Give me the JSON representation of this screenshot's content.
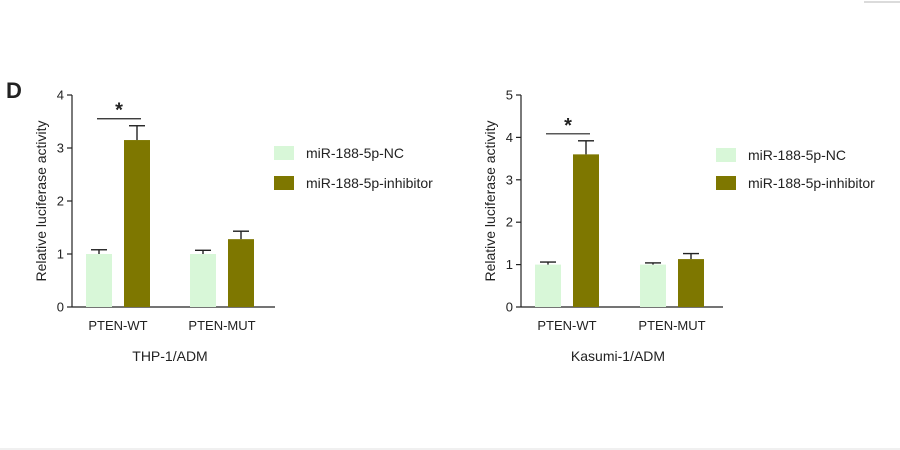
{
  "panel_label": "D",
  "colors": {
    "nc": "#d8f7d8",
    "inhibitor": "#7e7700"
  },
  "chart_data": [
    {
      "type": "bar",
      "categories": [
        "PTEN-WT",
        "PTEN-MUT"
      ],
      "series": [
        {
          "name": "miR-188-5p-NC",
          "values": [
            1.0,
            1.0
          ],
          "errors": [
            0.08,
            0.07
          ]
        },
        {
          "name": "miR-188-5p-inhibitor",
          "values": [
            3.15,
            1.28
          ],
          "errors": [
            0.27,
            0.15
          ]
        }
      ],
      "xlabel": "THP-1/ADM",
      "ylabel": "Relative luciferase activity",
      "ylim": [
        0,
        4
      ],
      "yticks": [
        0,
        1,
        2,
        3,
        4
      ],
      "grid": false,
      "legend": "right",
      "significance": [
        {
          "category": "PTEN-WT",
          "label": "*"
        }
      ]
    },
    {
      "type": "bar",
      "categories": [
        "PTEN-WT",
        "PTEN-MUT"
      ],
      "series": [
        {
          "name": "miR-188-5p-NC",
          "values": [
            1.0,
            1.0
          ],
          "errors": [
            0.06,
            0.04
          ]
        },
        {
          "name": "miR-188-5p-inhibitor",
          "values": [
            3.6,
            1.13
          ],
          "errors": [
            0.32,
            0.13
          ]
        }
      ],
      "xlabel": "Kasumi-1/ADM",
      "ylabel": "Relative luciferase activity",
      "ylim": [
        0,
        5
      ],
      "yticks": [
        0,
        1,
        2,
        3,
        4,
        5
      ],
      "grid": false,
      "legend": "right",
      "significance": [
        {
          "category": "PTEN-WT",
          "label": "*"
        }
      ]
    }
  ]
}
